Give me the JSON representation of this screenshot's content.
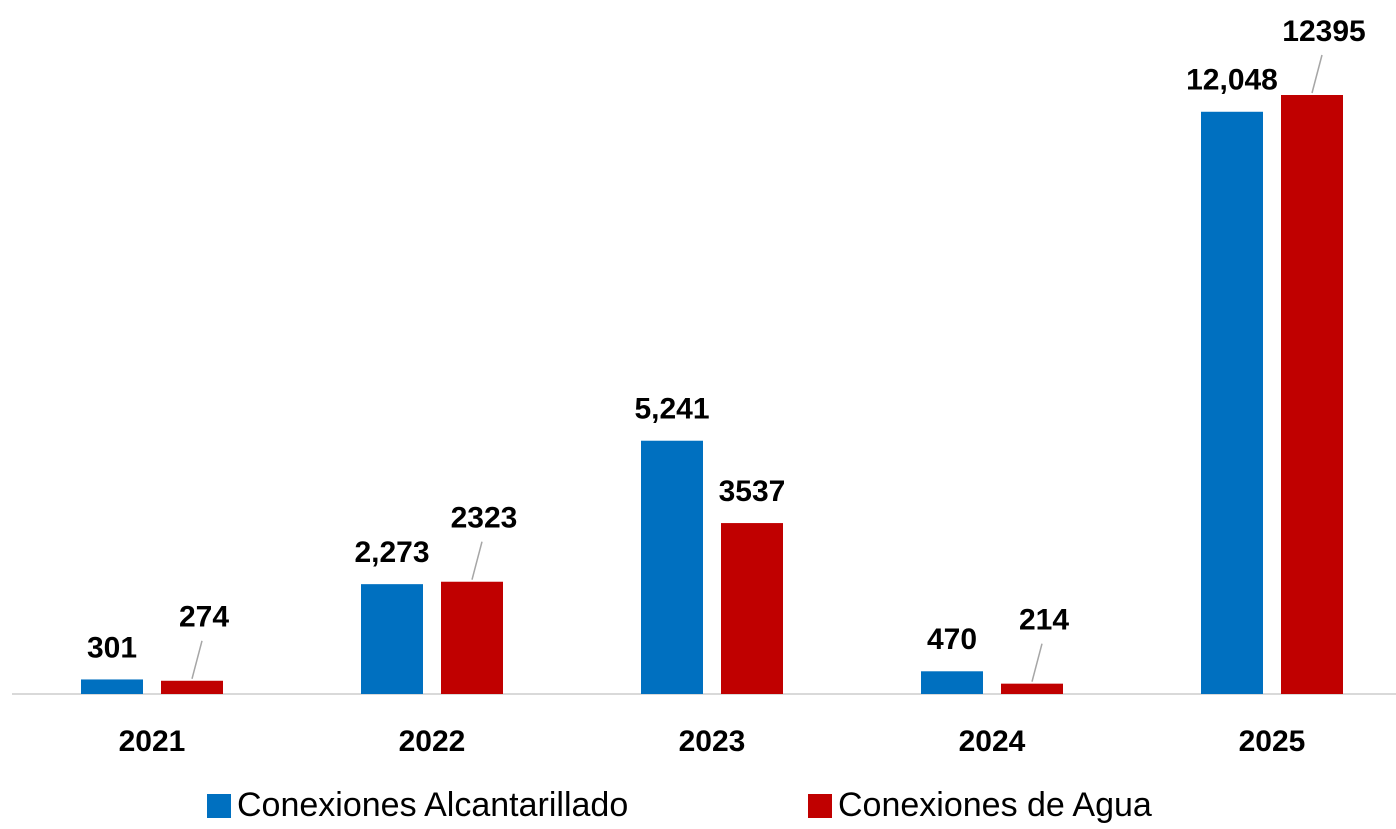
{
  "chart_data": {
    "type": "bar",
    "categories": [
      "2021",
      "2022",
      "2023",
      "2024",
      "2025"
    ],
    "series": [
      {
        "name": "Conexiones Alcantarillado",
        "color": "#0070c0",
        "values": [
          301,
          2273,
          5241,
          470,
          12048
        ],
        "value_labels": [
          "301",
          "2,273",
          "5,241",
          "470",
          "12,048"
        ]
      },
      {
        "name": "Conexiones de Agua",
        "color": "#c00000",
        "values": [
          274,
          2323,
          3537,
          214,
          12395
        ]
      }
    ]
  }
}
